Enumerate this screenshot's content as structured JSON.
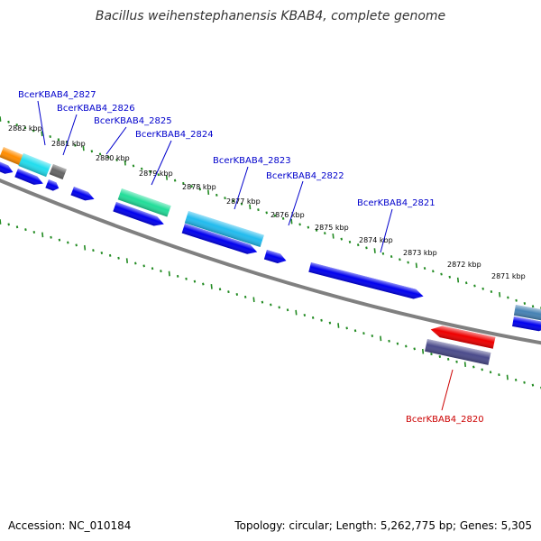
{
  "title": "Bacillus weihenstephanensis KBAB4, complete genome",
  "footer": {
    "accession": "Accession: NC_010184",
    "summary": "Topology: circular; Length: 5,262,775 bp; Genes: 5,305"
  },
  "colors": {
    "backbone": "#808080",
    "tick": "#228B22",
    "forward_label": "#0000CC",
    "reverse_label": "#CC0000",
    "cds": "#0000EE",
    "orange": "#FF8C00",
    "cyan": "#22DDEE",
    "gray": "#666666",
    "green": "#22DD99",
    "skyblue": "#22BBEE",
    "red": "#EE0000",
    "slate": "#4B4B8B",
    "steel": "#4682B4"
  },
  "scale_labels": [
    "2882 kbp",
    "2881 kbp",
    "2880 kbp",
    "2879 kbp",
    "2878 kbp",
    "2877 kbp",
    "2876 kbp",
    "2875 kbp",
    "2874 kbp",
    "2873 kbp",
    "2872 kbp",
    "2871 kbp"
  ],
  "gene_labels": [
    {
      "text": "BcerKBAB4_2827",
      "strand": "forward"
    },
    {
      "text": "BcerKBAB4_2826",
      "strand": "forward"
    },
    {
      "text": "BcerKBAB4_2825",
      "strand": "forward"
    },
    {
      "text": "BcerKBAB4_2824",
      "strand": "forward"
    },
    {
      "text": "BcerKBAB4_2823",
      "strand": "forward"
    },
    {
      "text": "BcerKBAB4_2822",
      "strand": "forward"
    },
    {
      "text": "BcerKBAB4_2821",
      "strand": "forward"
    },
    {
      "text": "BcerKBAB4_2820",
      "strand": "reverse"
    }
  ]
}
